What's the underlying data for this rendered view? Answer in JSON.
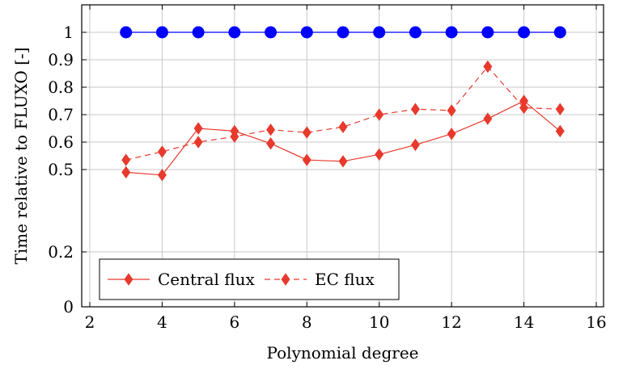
{
  "chart_data": {
    "type": "line",
    "xlabel": "Polynomial degree",
    "ylabel": "Time relative to FLUXO [-]",
    "xlim": [
      2,
      16
    ],
    "ylim": [
      0,
      1
    ],
    "xticks": [
      2,
      4,
      6,
      8,
      10,
      12,
      14,
      16
    ],
    "yticks": [
      0,
      0.2,
      0.5,
      0.6,
      0.7,
      0.8,
      0.9,
      1
    ],
    "ytick_labels": [
      "0",
      "0.2",
      "0.5",
      "0.6",
      "0.7",
      "0.8",
      "0.9",
      "1"
    ],
    "grid": true,
    "legend_position": "bottom-left",
    "x": [
      3,
      4,
      5,
      6,
      7,
      8,
      9,
      10,
      11,
      12,
      13,
      14,
      15
    ],
    "series": [
      {
        "name": "",
        "color": "#0000ff",
        "marker": "circle",
        "line": "solid",
        "in_legend": false,
        "values": [
          1,
          1,
          1,
          1,
          1,
          1,
          1,
          1,
          1,
          1,
          1,
          1,
          1
        ]
      },
      {
        "name": "Central flux",
        "color": "#e8392d",
        "marker": "diamond",
        "line": "solid",
        "in_legend": true,
        "values": [
          0.49,
          0.48,
          0.65,
          0.64,
          0.595,
          0.535,
          0.53,
          0.555,
          0.59,
          0.63,
          0.685,
          0.75,
          0.64
        ]
      },
      {
        "name": "EC flux",
        "color": "#e8392d",
        "marker": "diamond",
        "line": "dashed",
        "in_legend": true,
        "values": [
          0.535,
          0.565,
          0.6,
          0.62,
          0.645,
          0.635,
          0.655,
          0.7,
          0.72,
          0.715,
          0.875,
          0.725,
          0.72
        ]
      }
    ]
  }
}
